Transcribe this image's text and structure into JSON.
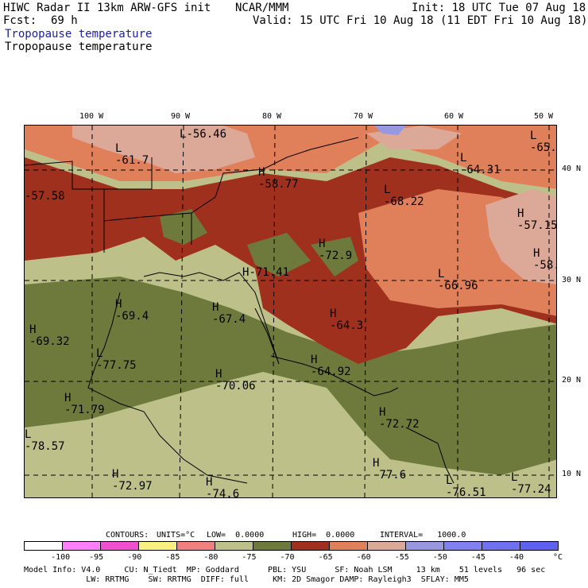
{
  "header": {
    "model": "HIWC Radar II 13km ARW-GFS init",
    "org": "NCAR/MMM",
    "init": "Init: 18 UTC Tue 07 Aug 18",
    "fcst_label": "Fcst:",
    "fcst_value": "69 h",
    "valid": "Valid: 15 UTC Fri 10 Aug 18 (11 EDT Fri 10 Aug 18)",
    "field_title_blue": "Tropopause temperature",
    "field_title_black": "Tropopause temperature"
  },
  "map": {
    "lon_labels": [
      "100 W",
      "90 W",
      "80 W",
      "70 W",
      "60 W",
      "50 W"
    ],
    "lat_labels": [
      "40 N",
      "30 N",
      "20 N",
      "10 N"
    ],
    "highs_lows": [
      {
        "mark": "L",
        "value": "-56.46"
      },
      {
        "mark": "L",
        "value": "-61.7"
      },
      {
        "mark": "L",
        "value": "-65."
      },
      {
        "mark": "H",
        "value": "-58.77"
      },
      {
        "mark": "L",
        "value": "-64.31"
      },
      {
        "mark": "H",
        "value": "-57.58"
      },
      {
        "mark": "L",
        "value": "-68.22"
      },
      {
        "mark": "H",
        "value": "-57.15"
      },
      {
        "mark": "H",
        "value": "-72.9"
      },
      {
        "mark": "H",
        "value": "-58."
      },
      {
        "mark": "H",
        "value": "-71.41"
      },
      {
        "mark": "L",
        "value": "-66.96"
      },
      {
        "mark": "H",
        "value": "-69.4"
      },
      {
        "mark": "H",
        "value": "-67.4"
      },
      {
        "mark": "H",
        "value": "-64.3"
      },
      {
        "mark": "H",
        "value": "-69.32"
      },
      {
        "mark": "L",
        "value": "-77.75"
      },
      {
        "mark": "H",
        "value": "-64.92"
      },
      {
        "mark": "H",
        "value": "-70.06"
      },
      {
        "mark": "H",
        "value": "-71.79"
      },
      {
        "mark": "H",
        "value": "-72.72"
      },
      {
        "mark": "L",
        "value": "-78.57"
      },
      {
        "mark": "H",
        "value": "-77.6"
      },
      {
        "mark": "H",
        "value": "-72.97"
      },
      {
        "mark": "H",
        "value": "-74.6"
      },
      {
        "mark": "L",
        "value": "-76.51"
      },
      {
        "mark": "L",
        "value": "-77.24"
      }
    ],
    "colors": {
      "deep_red": "#A0301E",
      "orange": "#E0805A",
      "pink": "#DCA898",
      "olive": "#6E7A3C",
      "khaki": "#BEC08A",
      "lavender": "#9898E0"
    }
  },
  "contours_line": {
    "contours_label": "CONTOURS:",
    "units": "UNITS=°C",
    "low": "LOW=  0.0000",
    "high": "HIGH=  0.0000",
    "interval": "INTERVAL=   1000.0"
  },
  "colorbar": {
    "colors": [
      "#FFFFFF",
      "#FF80FF",
      "#F050D0",
      "#F8F080",
      "#F08080",
      "#BEC08A",
      "#6E7A3C",
      "#A0301E",
      "#E0805A",
      "#DCA898",
      "#9898E0",
      "#8080F0",
      "#7070F0",
      "#6060F0"
    ],
    "ticks": [
      "-100",
      "-95",
      "-90",
      "-85",
      "-80",
      "-75",
      "-70",
      "-65",
      "-60",
      "-55",
      "-50",
      "-45",
      "-40"
    ],
    "unit": "°C"
  },
  "footer": {
    "line1": "Model Info: V4.0     CU: N_Tiedt  MP: Goddard      PBL: YSU      SF: Noah LSM     13 km    51 levels   96 sec",
    "line2": "             LW: RRTMG    SW: RRTMG  DIFF: full     KM: 2D Smagor DAMP: Rayleigh3  SFLAY: MM5"
  }
}
